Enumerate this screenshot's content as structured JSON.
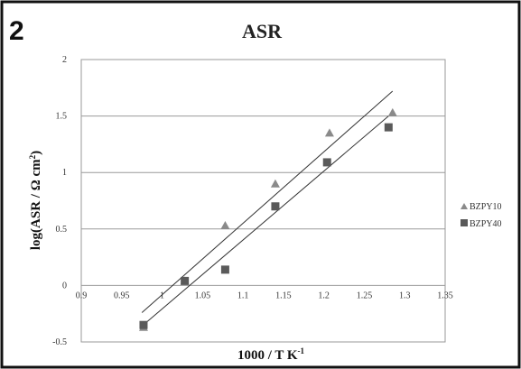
{
  "panel_label": "2",
  "chart_data": {
    "type": "scatter",
    "title": "ASR",
    "xlabel": "1000 / T K",
    "xlabel_sup": "-1",
    "ylabel": "log(ASR / Ω cm",
    "ylabel_sup": "2",
    "ylabel_end": ")",
    "xlim": [
      0.9,
      1.35
    ],
    "ylim": [
      -0.5,
      2
    ],
    "x_ticks": [
      0.9,
      0.95,
      1,
      1.05,
      1.1,
      1.15,
      1.2,
      1.25,
      1.3,
      1.35
    ],
    "x_tick_labels": [
      "0.9",
      "0.95",
      "1",
      "1.05",
      "1.1",
      "1.15",
      "1.2",
      "1.25",
      "1.3",
      "1.35"
    ],
    "y_ticks": [
      -0.5,
      0,
      0.5,
      1,
      1.5,
      2
    ],
    "y_tick_labels": [
      "-0.5",
      "0",
      "0.5",
      "1",
      "1.5",
      "2"
    ],
    "grid": "horizontal",
    "legend_position": "right",
    "series": [
      {
        "name": "BZPY10",
        "marker": "triangle",
        "color": "#8a8a8a",
        "x": [
          0.977,
          1.028,
          1.078,
          1.14,
          1.207,
          1.285
        ],
        "y": [
          -0.37,
          0.04,
          0.53,
          0.9,
          1.35,
          1.53
        ],
        "trend": {
          "x": [
            0.975,
            1.285
          ],
          "y": [
            -0.24,
            1.72
          ]
        }
      },
      {
        "name": "BZPY40",
        "marker": "square",
        "color": "#5a5a5a",
        "x": [
          0.977,
          1.028,
          1.078,
          1.14,
          1.204,
          1.28
        ],
        "y": [
          -0.35,
          0.04,
          0.14,
          0.7,
          1.09,
          1.4
        ]
      }
    ],
    "trendlines": [
      {
        "x": [
          0.975,
          1.285
        ],
        "y": [
          -0.24,
          1.72
        ]
      },
      {
        "x": [
          0.975,
          1.28
        ],
        "y": [
          -0.36,
          1.5
        ]
      }
    ]
  }
}
